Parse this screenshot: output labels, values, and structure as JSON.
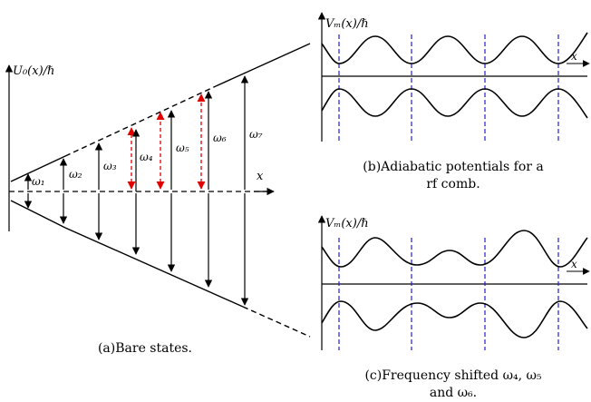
{
  "panel_a": {
    "y_axis_label": "U₀(x)/ℏ",
    "x_axis_label": "x",
    "caption": "(a)Bare states.",
    "transitions": [
      {
        "label": "ω₁",
        "color": "#000000",
        "style": "solid"
      },
      {
        "label": "ω₂",
        "color": "#000000",
        "style": "solid"
      },
      {
        "label": "ω₃",
        "color": "#000000",
        "style": "solid"
      },
      {
        "label": "ω₄",
        "color": "#e00000",
        "style": "dashed"
      },
      {
        "label": "ω₅",
        "color": "#000000",
        "style": "solid"
      },
      {
        "label": "ω₆",
        "color": "#000000",
        "style": "solid"
      },
      {
        "label": "ω₇",
        "color": "#000000",
        "style": "solid"
      }
    ]
  },
  "panel_b": {
    "y_axis_label": "Vₘ(x)/ℏ",
    "x_axis_label": "x",
    "caption_line1": "(b)Adiabatic potentials for a",
    "caption_line2": "rf comb."
  },
  "panel_c": {
    "y_axis_label": "Vₘ(x)/ℏ",
    "x_axis_label": "x",
    "caption_line1": "(c)Frequency shifted ω₄, ω₅",
    "caption_line2": "and ω₆."
  },
  "colors": {
    "line": "#000000",
    "red_arrow": "#e00000",
    "guide_dash": "#2020c8"
  }
}
